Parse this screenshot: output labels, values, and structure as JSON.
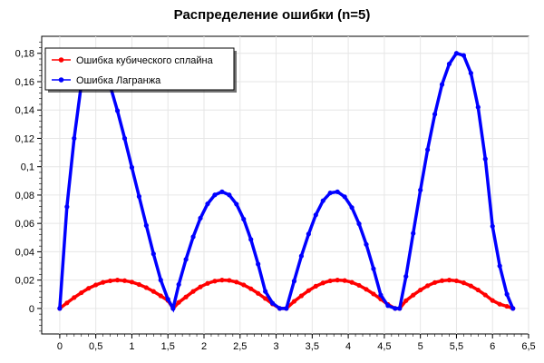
{
  "chart_data": {
    "type": "scatter",
    "title": "Распределение ошибки (n=5)",
    "xlabel": "",
    "ylabel": "",
    "xlim": [
      -0.25,
      6.5
    ],
    "ylim": [
      -0.018,
      0.192
    ],
    "x_ticks": [
      {
        "value": 0,
        "label": "0"
      },
      {
        "value": 0.5,
        "label": "0,5"
      },
      {
        "value": 1,
        "label": "1"
      },
      {
        "value": 1.5,
        "label": "1,5"
      },
      {
        "value": 2,
        "label": "2"
      },
      {
        "value": 2.5,
        "label": "2,5"
      },
      {
        "value": 3,
        "label": "3"
      },
      {
        "value": 3.5,
        "label": "3,5"
      },
      {
        "value": 4,
        "label": "4"
      },
      {
        "value": 4.5,
        "label": "4,5"
      },
      {
        "value": 5,
        "label": "5"
      },
      {
        "value": 5.5,
        "label": "5,5"
      },
      {
        "value": 6,
        "label": "6"
      },
      {
        "value": 6.5,
        "label": "6,5"
      }
    ],
    "y_ticks": [
      {
        "value": 0,
        "label": "0"
      },
      {
        "value": 0.02,
        "label": "0,02"
      },
      {
        "value": 0.04,
        "label": "0,04"
      },
      {
        "value": 0.06,
        "label": "0,06"
      },
      {
        "value": 0.08,
        "label": "0,08"
      },
      {
        "value": 0.1,
        "label": "0,1"
      },
      {
        "value": 0.12,
        "label": "0,12"
      },
      {
        "value": 0.14,
        "label": "0,14"
      },
      {
        "value": 0.16,
        "label": "0,16"
      },
      {
        "value": 0.18,
        "label": "0,18"
      }
    ],
    "grid": true,
    "legend_position": "top-left",
    "series": [
      {
        "name": "Ошибка кубического сплайна",
        "color": "#ff0000",
        "x": [
          0,
          0.1,
          0.2,
          0.3,
          0.4,
          0.5,
          0.6,
          0.7,
          0.8,
          0.9,
          1.0,
          1.1,
          1.2,
          1.3,
          1.4,
          1.5,
          1.571,
          1.65,
          1.75,
          1.85,
          1.95,
          2.05,
          2.15,
          2.25,
          2.35,
          2.45,
          2.55,
          2.65,
          2.75,
          2.85,
          2.95,
          3.05,
          3.142,
          3.25,
          3.35,
          3.45,
          3.55,
          3.65,
          3.75,
          3.85,
          3.95,
          4.05,
          4.15,
          4.25,
          4.35,
          4.45,
          4.55,
          4.65,
          4.712,
          4.8,
          4.9,
          5.0,
          5.1,
          5.2,
          5.3,
          5.4,
          5.5,
          5.6,
          5.7,
          5.8,
          5.9,
          6.0,
          6.1,
          6.2,
          6.283
        ],
        "y": [
          0,
          0.0039,
          0.0077,
          0.0111,
          0.0142,
          0.0166,
          0.0184,
          0.0195,
          0.02,
          0.0196,
          0.0186,
          0.0169,
          0.0147,
          0.012,
          0.0089,
          0.0056,
          0.0,
          0.0043,
          0.0081,
          0.012,
          0.0152,
          0.0177,
          0.0193,
          0.02,
          0.0198,
          0.0186,
          0.0166,
          0.0139,
          0.0106,
          0.007,
          0.0032,
          0.0,
          0.0,
          0.005,
          0.0089,
          0.0126,
          0.0157,
          0.018,
          0.0195,
          0.02,
          0.0197,
          0.0184,
          0.0163,
          0.0135,
          0.0102,
          0.0066,
          0.0028,
          0.0,
          0.0,
          0.0055,
          0.0094,
          0.013,
          0.016,
          0.0183,
          0.0196,
          0.02,
          0.0195,
          0.0181,
          0.0159,
          0.013,
          0.0095,
          0.0056,
          0.003,
          0.0015,
          0
        ]
      },
      {
        "name": "Ошибка Лагранжа",
        "color": "#0000ff",
        "x": [
          0,
          0.1,
          0.2,
          0.3,
          0.4,
          0.5,
          0.6,
          0.7,
          0.8,
          0.9,
          1.0,
          1.1,
          1.2,
          1.3,
          1.4,
          1.5,
          1.571,
          1.65,
          1.75,
          1.85,
          1.95,
          2.05,
          2.15,
          2.25,
          2.35,
          2.45,
          2.55,
          2.65,
          2.75,
          2.85,
          2.95,
          3.05,
          3.142,
          3.25,
          3.35,
          3.45,
          3.55,
          3.65,
          3.75,
          3.85,
          3.95,
          4.05,
          4.15,
          4.25,
          4.35,
          4.45,
          4.55,
          4.65,
          4.712,
          4.8,
          4.9,
          5.0,
          5.1,
          5.2,
          5.3,
          5.4,
          5.5,
          5.6,
          5.7,
          5.8,
          5.9,
          6.0,
          6.1,
          6.2,
          6.283
        ],
        "y": [
          0,
          0.0717,
          0.12,
          0.1588,
          0.18,
          0.182,
          0.172,
          0.157,
          0.1395,
          0.12,
          0.0995,
          0.079,
          0.0585,
          0.0385,
          0.02,
          0.0065,
          0.0,
          0.0169,
          0.0346,
          0.0505,
          0.0637,
          0.0738,
          0.0801,
          0.0823,
          0.0801,
          0.0736,
          0.063,
          0.0487,
          0.0313,
          0.012,
          0.0037,
          0.0,
          0.0,
          0.0193,
          0.037,
          0.0525,
          0.066,
          0.076,
          0.0815,
          0.0823,
          0.0788,
          0.0712,
          0.0597,
          0.0452,
          0.028,
          0.0095,
          0.002,
          0.0,
          0.0,
          0.0226,
          0.053,
          0.0835,
          0.112,
          0.137,
          0.158,
          0.1725,
          0.18,
          0.1785,
          0.166,
          0.142,
          0.1055,
          0.058,
          0.03,
          0.01,
          0
        ]
      }
    ]
  }
}
